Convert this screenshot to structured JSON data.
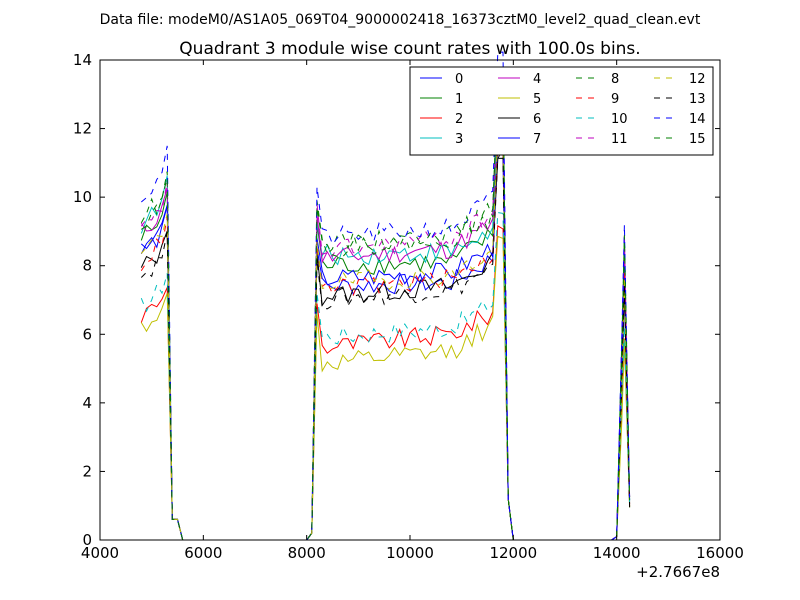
{
  "header": {
    "suptitle": "Data file: modeM0/AS1A05_069T04_9000002418_16373cztM0_level2_quad_clean.evt"
  },
  "chart_data": {
    "type": "line",
    "title": "Quadrant 3 module wise count rates with 100.0s bins.",
    "xlabel": "",
    "ylabel": "",
    "xlim": [
      4000,
      16000
    ],
    "ylim": [
      0,
      14
    ],
    "x_offset_label": "+2.7667e8",
    "x_ticks": [
      "4000",
      "6000",
      "8000",
      "10000",
      "12000",
      "14000",
      "16000"
    ],
    "y_ticks": [
      "0",
      "2",
      "4",
      "6",
      "8",
      "10",
      "12",
      "14"
    ],
    "grid": false,
    "legend_position": "top-right",
    "legend_columns": 4,
    "series": [
      {
        "name": "0",
        "color": "#0000ff",
        "dash": "solid",
        "base": [
          8.6,
          7.4,
          7.5,
          7.9
        ]
      },
      {
        "name": "1",
        "color": "#008000",
        "dash": "solid",
        "base": [
          8.8,
          8.0,
          8.1,
          8.6
        ]
      },
      {
        "name": "2",
        "color": "#ff0000",
        "dash": "solid",
        "base": [
          6.5,
          5.6,
          6.0,
          6.3
        ]
      },
      {
        "name": "3",
        "color": "#00bfbf",
        "dash": "solid",
        "base": [
          9.2,
          8.3,
          8.4,
          8.7
        ]
      },
      {
        "name": "4",
        "color": "#bf00bf",
        "dash": "solid",
        "base": [
          9.0,
          8.2,
          8.5,
          8.9
        ]
      },
      {
        "name": "5",
        "color": "#bfbf00",
        "dash": "solid",
        "base": [
          6.2,
          5.1,
          5.5,
          6.0
        ]
      },
      {
        "name": "6",
        "color": "#000000",
        "dash": "solid",
        "base": [
          7.9,
          7.1,
          7.4,
          7.8
        ]
      },
      {
        "name": "7",
        "color": "#0000ff",
        "dash": "solid",
        "base": [
          8.4,
          7.6,
          7.8,
          8.2
        ]
      },
      {
        "name": "8",
        "color": "#008000",
        "dash": "dashed",
        "base": [
          9.4,
          8.6,
          8.9,
          9.3
        ]
      },
      {
        "name": "9",
        "color": "#ff0000",
        "dash": "dashed",
        "base": [
          8.1,
          7.3,
          7.6,
          8.0
        ]
      },
      {
        "name": "10",
        "color": "#00bfbf",
        "dash": "dashed",
        "base": [
          6.8,
          5.9,
          6.2,
          6.6
        ]
      },
      {
        "name": "11",
        "color": "#bf00bf",
        "dash": "dashed",
        "base": [
          9.0,
          8.4,
          8.8,
          9.2
        ]
      },
      {
        "name": "12",
        "color": "#bfbf00",
        "dash": "dashed",
        "base": [
          8.3,
          7.5,
          7.7,
          8.1
        ]
      },
      {
        "name": "13",
        "color": "#000000",
        "dash": "dashed",
        "base": [
          7.7,
          7.0,
          7.3,
          7.6
        ]
      },
      {
        "name": "14",
        "color": "#0000ff",
        "dash": "dashed",
        "base": [
          10.0,
          8.8,
          9.1,
          9.7
        ]
      },
      {
        "name": "15",
        "color": "#008000",
        "dash": "dashed",
        "base": [
          9.3,
          8.5,
          8.8,
          9.1
        ]
      }
    ],
    "segments": [
      {
        "start": 4800,
        "end": 5600,
        "peak_x": 5300,
        "peak_factor": 1.15
      },
      {
        "start": 8100,
        "end": 12000,
        "peak_x": 11800,
        "peak_factor": 1.45
      },
      {
        "start": 14000,
        "end": 14300,
        "peak_x": 14150,
        "peak_factor": 1.0
      }
    ]
  }
}
